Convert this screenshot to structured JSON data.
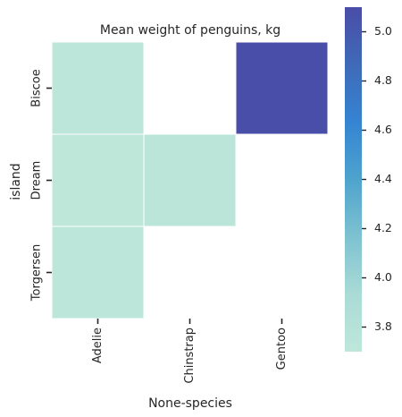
{
  "chart_data": {
    "type": "heatmap",
    "title": "Mean weight of penguins, kg",
    "xlabel": "None-species",
    "ylabel": "island",
    "x_categories": [
      "Adelie",
      "Chinstrap",
      "Gentoo"
    ],
    "y_categories": [
      "Biscoe",
      "Dream",
      "Torgersen"
    ],
    "values": [
      [
        3.71,
        null,
        5.08
      ],
      [
        3.69,
        3.73,
        null
      ],
      [
        3.71,
        null,
        null
      ]
    ],
    "colorbar": {
      "vmin": 3.7,
      "vmax": 5.1,
      "ticks": [
        3.8,
        4.0,
        4.2,
        4.4,
        4.6,
        4.8,
        5.0
      ],
      "tick_labels": [
        "3.8",
        "4.0",
        "4.2",
        "4.4",
        "4.6",
        "4.8",
        "5.0"
      ],
      "colors": [
        "#bee7da",
        "#aadbd6",
        "#7ec2d1",
        "#4ea3cd",
        "#3584d2",
        "#3f6ab7",
        "#4a4da7"
      ]
    },
    "grid": false,
    "legend": "colorbar-right"
  }
}
